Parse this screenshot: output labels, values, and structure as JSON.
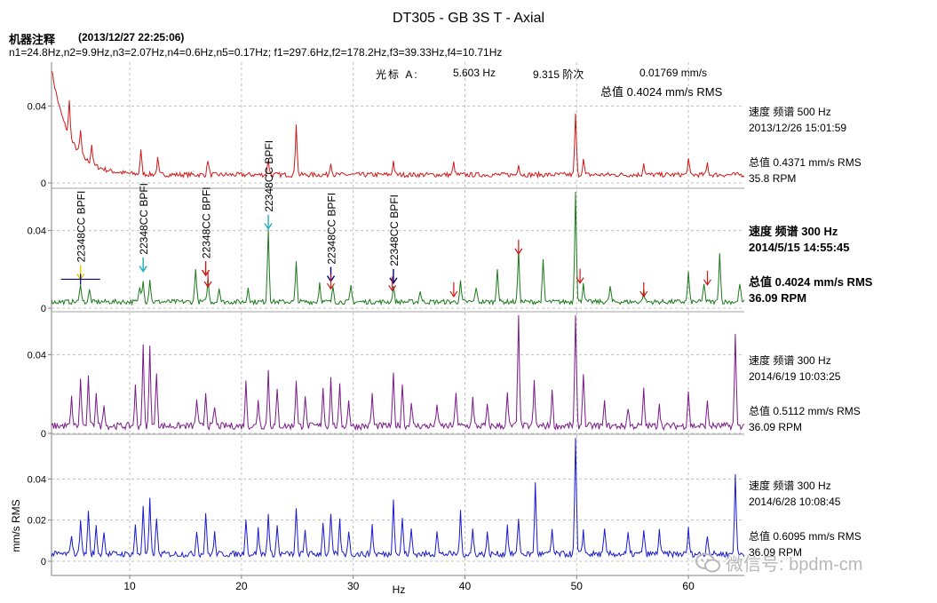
{
  "header": {
    "title": "DT305 - GB 3S T - Axial",
    "notes_label": "机器注释",
    "notes_time": "(2013/12/27 22:25:06)",
    "freq_line": "n1=24.8Hz,n2=9.9Hz,n3=2.07Hz,n4=0.6Hz,n5=0.17Hz; f1=297.6Hz,f2=178.2Hz,f3=39.33Hz,f4=10.71Hz",
    "cursor_label": "光标 A:",
    "cursor_freq": "5.603 Hz",
    "cursor_order": "9.315 阶次",
    "cursor_amp": "0.01769 mm/s",
    "overall_top": "总值 0.4024 mm/s RMS"
  },
  "watermark": "微信号: bpdm-cm",
  "colors": {
    "spectrum1": "#d01818",
    "spectrum2": "#1a7a1a",
    "spectrum3": "#7a1a8a",
    "spectrum4": "#1a1ad0",
    "marker_red": "#d01818",
    "marker_navy": "#000080",
    "marker_cyan": "#20b0c0",
    "marker_yellow": "#e8d000",
    "grid": "#c0c0c0",
    "axis": "#808080"
  },
  "chart_data": {
    "type": "line",
    "xlabel": "Hz",
    "xlim": [
      3,
      65
    ],
    "xticks": [
      10,
      20,
      30,
      40,
      50,
      60
    ],
    "ylabel": "mm/s RMS",
    "grid": true,
    "bpfi_label": "22348CC BPFI",
    "bpfi_x": [
      5.6,
      11.2,
      16.8,
      22.4,
      28.0,
      33.6
    ],
    "red_arrow_x": [
      17.0,
      28.0,
      33.5,
      39.0,
      44.8,
      50.3,
      56.0,
      61.7
    ],
    "panels": [
      {
        "name": "2013/12/26",
        "ylim": [
          0,
          0.06
        ],
        "yticks": [
          0,
          0.04
        ],
        "yticklabels": [
          "0",
          "0.04"
        ],
        "info": [
          "速度 频谱 500 Hz",
          "2013/12/26 15:01:59",
          "总值 0.4371 mm/s RMS",
          "35.8 RPM"
        ],
        "bold": false,
        "baseline": 0.003,
        "noise": 0.0025,
        "decay": {
          "amp": 0.055,
          "tau": 1.6
        },
        "peaks": [
          [
            4.6,
            0.018
          ],
          [
            5.6,
            0.012
          ],
          [
            6.6,
            0.01
          ],
          [
            11.0,
            0.012
          ],
          [
            12.5,
            0.008
          ],
          [
            17.0,
            0.008
          ],
          [
            22.4,
            0.008
          ],
          [
            24.9,
            0.027
          ],
          [
            28.0,
            0.007
          ],
          [
            33.6,
            0.007
          ],
          [
            39.0,
            0.006
          ],
          [
            44.8,
            0.006
          ],
          [
            49.9,
            0.032
          ],
          [
            50.6,
            0.008
          ],
          [
            56.0,
            0.006
          ],
          [
            60.0,
            0.008
          ],
          [
            61.7,
            0.006
          ]
        ]
      },
      {
        "name": "2014/5/15",
        "ylim": [
          0,
          0.06
        ],
        "yticks": [
          0,
          0.04
        ],
        "yticklabels": [
          "0",
          "0.04"
        ],
        "info": [
          "速度 频谱 300 Hz",
          "2014/5/15 14:55:45",
          "总值 0.4024 mm/s RMS",
          "36.09 RPM"
        ],
        "bold": true,
        "baseline": 0.002,
        "noise": 0.0025,
        "peaks": [
          [
            5.6,
            0.01
          ],
          [
            6.4,
            0.006
          ],
          [
            10.9,
            0.008
          ],
          [
            11.2,
            0.012
          ],
          [
            11.8,
            0.012
          ],
          [
            15.9,
            0.018
          ],
          [
            17.0,
            0.012
          ],
          [
            18.0,
            0.008
          ],
          [
            20.6,
            0.008
          ],
          [
            22.4,
            0.038
          ],
          [
            24.9,
            0.02
          ],
          [
            27.0,
            0.01
          ],
          [
            28.2,
            0.008
          ],
          [
            29.8,
            0.008
          ],
          [
            33.6,
            0.008
          ],
          [
            36.0,
            0.006
          ],
          [
            39.6,
            0.01
          ],
          [
            41.0,
            0.008
          ],
          [
            42.9,
            0.018
          ],
          [
            44.8,
            0.026
          ],
          [
            47.0,
            0.021
          ],
          [
            49.9,
            0.058
          ],
          [
            50.6,
            0.01
          ],
          [
            53.0,
            0.008
          ],
          [
            56.0,
            0.006
          ],
          [
            60.0,
            0.015
          ],
          [
            61.4,
            0.01
          ],
          [
            62.8,
            0.026
          ],
          [
            64.6,
            0.01
          ]
        ]
      },
      {
        "name": "2014/6/19",
        "ylim": [
          0,
          0.06
        ],
        "yticks": [
          0,
          0.04
        ],
        "yticklabels": [
          "0",
          "0.04"
        ],
        "info": [
          "速度 频谱 300 Hz",
          "2014/6/19 10:03:25",
          "总值 0.5112 mm/s RMS",
          "36.09 RPM"
        ],
        "bold": false,
        "baseline": 0.002,
        "noise": 0.0035,
        "peaks": [
          [
            4.8,
            0.014
          ],
          [
            5.6,
            0.024
          ],
          [
            6.3,
            0.024
          ],
          [
            7.0,
            0.018
          ],
          [
            7.7,
            0.012
          ],
          [
            10.5,
            0.02
          ],
          [
            11.2,
            0.04
          ],
          [
            11.8,
            0.04
          ],
          [
            12.4,
            0.028
          ],
          [
            16.0,
            0.014
          ],
          [
            16.8,
            0.018
          ],
          [
            17.6,
            0.01
          ],
          [
            20.4,
            0.022
          ],
          [
            21.5,
            0.014
          ],
          [
            22.4,
            0.028
          ],
          [
            23.2,
            0.018
          ],
          [
            24.9,
            0.024
          ],
          [
            25.7,
            0.016
          ],
          [
            27.3,
            0.02
          ],
          [
            28.0,
            0.024
          ],
          [
            28.8,
            0.02
          ],
          [
            29.6,
            0.014
          ],
          [
            31.7,
            0.016
          ],
          [
            33.6,
            0.026
          ],
          [
            34.4,
            0.022
          ],
          [
            35.2,
            0.012
          ],
          [
            37.5,
            0.012
          ],
          [
            39.2,
            0.018
          ],
          [
            40.7,
            0.014
          ],
          [
            42.0,
            0.01
          ],
          [
            43.8,
            0.016
          ],
          [
            44.8,
            0.058
          ],
          [
            46.2,
            0.022
          ],
          [
            47.8,
            0.018
          ],
          [
            49.9,
            0.058
          ],
          [
            50.6,
            0.028
          ],
          [
            52.5,
            0.012
          ],
          [
            54.6,
            0.01
          ],
          [
            56.0,
            0.018
          ],
          [
            57.4,
            0.012
          ],
          [
            60.0,
            0.018
          ],
          [
            61.7,
            0.012
          ],
          [
            64.2,
            0.046
          ]
        ]
      },
      {
        "name": "2014/6/28",
        "ylim": [
          0,
          0.06
        ],
        "yticks": [
          0,
          0.02,
          0.04
        ],
        "yticklabels": [
          "0",
          "0.02",
          "0.04"
        ],
        "info": [
          "速度 频谱 300 Hz",
          "2014/6/28 10:08:45",
          "总值 0.6095 mm/s RMS",
          "36.09 RPM"
        ],
        "bold": false,
        "baseline": 0.002,
        "noise": 0.003,
        "peaks": [
          [
            4.8,
            0.01
          ],
          [
            5.6,
            0.018
          ],
          [
            6.3,
            0.022
          ],
          [
            7.0,
            0.014
          ],
          [
            7.7,
            0.012
          ],
          [
            10.5,
            0.014
          ],
          [
            11.2,
            0.024
          ],
          [
            11.8,
            0.026
          ],
          [
            12.4,
            0.018
          ],
          [
            16.0,
            0.012
          ],
          [
            16.8,
            0.02
          ],
          [
            17.6,
            0.01
          ],
          [
            20.4,
            0.018
          ],
          [
            21.5,
            0.012
          ],
          [
            22.4,
            0.02
          ],
          [
            23.2,
            0.014
          ],
          [
            24.9,
            0.022
          ],
          [
            25.7,
            0.012
          ],
          [
            27.3,
            0.016
          ],
          [
            28.0,
            0.02
          ],
          [
            28.8,
            0.016
          ],
          [
            29.6,
            0.012
          ],
          [
            31.7,
            0.014
          ],
          [
            33.6,
            0.028
          ],
          [
            34.4,
            0.018
          ],
          [
            35.2,
            0.012
          ],
          [
            37.5,
            0.012
          ],
          [
            39.6,
            0.02
          ],
          [
            40.7,
            0.012
          ],
          [
            42.0,
            0.01
          ],
          [
            43.8,
            0.014
          ],
          [
            44.8,
            0.018
          ],
          [
            46.3,
            0.034
          ],
          [
            47.8,
            0.012
          ],
          [
            49.9,
            0.058
          ],
          [
            50.6,
            0.012
          ],
          [
            52.5,
            0.012
          ],
          [
            54.6,
            0.01
          ],
          [
            56.0,
            0.012
          ],
          [
            57.4,
            0.012
          ],
          [
            60.0,
            0.012
          ],
          [
            61.7,
            0.01
          ],
          [
            64.2,
            0.04
          ]
        ]
      }
    ]
  }
}
